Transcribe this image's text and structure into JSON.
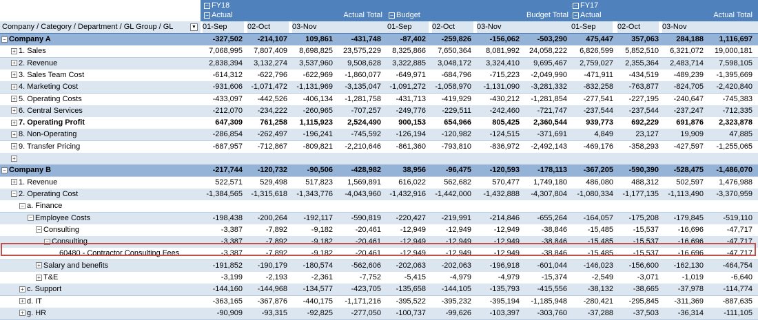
{
  "header": {
    "fy18": "FY18",
    "fy17": "FY17",
    "actual": "Actual",
    "budget": "Budget",
    "actual_total": "Actual Total",
    "budget_total": "Budget Total",
    "row_label": "Company / Category / Department / GL Group / GL",
    "dates": [
      "01-Sep",
      "02-Oct",
      "03-Nov"
    ]
  },
  "rows": [
    {
      "label": "Company A",
      "style": "company",
      "indent": 0,
      "toggle": "-",
      "values": [
        "-327,502",
        "-214,107",
        "109,861",
        "-431,748",
        "-87,402",
        "-259,826",
        "-156,062",
        "-503,290",
        "475,447",
        "357,063",
        "284,188",
        "1,116,697"
      ]
    },
    {
      "label": "1. Sales",
      "style": "plain",
      "indent": 1,
      "toggle": "+",
      "values": [
        "7,068,995",
        "7,807,409",
        "8,698,825",
        "23,575,229",
        "8,325,866",
        "7,650,364",
        "8,081,992",
        "24,058,222",
        "6,826,599",
        "5,852,510",
        "6,321,072",
        "19,000,181"
      ]
    },
    {
      "label": "2. Revenue",
      "style": "alt",
      "indent": 1,
      "toggle": "+",
      "values": [
        "2,838,394",
        "3,132,274",
        "3,537,960",
        "9,508,628",
        "3,322,885",
        "3,048,172",
        "3,324,410",
        "9,695,467",
        "2,759,027",
        "2,355,364",
        "2,483,714",
        "7,598,105"
      ]
    },
    {
      "label": "3. Sales Team Cost",
      "style": "plain",
      "indent": 1,
      "toggle": "+",
      "values": [
        "-614,312",
        "-622,796",
        "-622,969",
        "-1,860,077",
        "-649,971",
        "-684,796",
        "-715,223",
        "-2,049,990",
        "-471,911",
        "-434,519",
        "-489,239",
        "-1,395,669"
      ]
    },
    {
      "label": "4. Marketing Cost",
      "style": "alt",
      "indent": 1,
      "toggle": "+",
      "values": [
        "-931,606",
        "-1,071,472",
        "-1,131,969",
        "-3,135,047",
        "-1,091,272",
        "-1,058,970",
        "-1,131,090",
        "-3,281,332",
        "-832,258",
        "-763,877",
        "-824,705",
        "-2,420,840"
      ]
    },
    {
      "label": "5. Operating Costs",
      "style": "plain",
      "indent": 1,
      "toggle": "+",
      "values": [
        "-433,097",
        "-442,526",
        "-406,134",
        "-1,281,758",
        "-431,713",
        "-419,929",
        "-430,212",
        "-1,281,854",
        "-277,541",
        "-227,195",
        "-240,647",
        "-745,383"
      ]
    },
    {
      "label": "6. Central Services",
      "style": "alt",
      "indent": 1,
      "toggle": "+",
      "values": [
        "-212,070",
        "-234,222",
        "-260,965",
        "-707,257",
        "-249,776",
        "-229,511",
        "-242,460",
        "-721,747",
        "-237,544",
        "-237,544",
        "-237,247",
        "-712,335"
      ]
    },
    {
      "label": "7. Operating Profit",
      "style": "plain bold",
      "indent": 1,
      "toggle": "+",
      "values": [
        "647,309",
        "761,258",
        "1,115,923",
        "2,524,490",
        "900,153",
        "654,966",
        "805,425",
        "2,360,544",
        "939,773",
        "692,229",
        "691,876",
        "2,323,878"
      ]
    },
    {
      "label": "8. Non-Operating",
      "style": "alt",
      "indent": 1,
      "toggle": "+",
      "values": [
        "-286,854",
        "-262,497",
        "-196,241",
        "-745,592",
        "-126,194",
        "-120,982",
        "-124,515",
        "-371,691",
        "4,849",
        "23,127",
        "19,909",
        "47,885"
      ]
    },
    {
      "label": "9. Transfer Pricing",
      "style": "plain",
      "indent": 1,
      "toggle": "+",
      "values": [
        "-687,957",
        "-712,867",
        "-809,821",
        "-2,210,646",
        "-861,360",
        "-793,810",
        "-836,972",
        "-2,492,143",
        "-469,176",
        "-358,293",
        "-427,597",
        "-1,255,065"
      ]
    },
    {
      "label": "",
      "style": "alt",
      "indent": 1,
      "toggle": "+",
      "values": [
        "",
        "",
        "",
        "",
        "",
        "",
        "",
        "",
        "",
        "",
        "",
        ""
      ]
    },
    {
      "label": "Company B",
      "style": "company",
      "indent": 0,
      "toggle": "-",
      "values": [
        "-217,744",
        "-120,732",
        "-90,506",
        "-428,982",
        "38,956",
        "-96,475",
        "-120,593",
        "-178,113",
        "-367,205",
        "-590,390",
        "-528,475",
        "-1,486,070"
      ]
    },
    {
      "label": "1. Revenue",
      "style": "plain",
      "indent": 1,
      "toggle": "+",
      "values": [
        "522,571",
        "529,498",
        "517,823",
        "1,569,891",
        "616,022",
        "562,682",
        "570,477",
        "1,749,180",
        "486,080",
        "488,312",
        "502,597",
        "1,476,988"
      ]
    },
    {
      "label": "2. Operating Cost",
      "style": "alt",
      "indent": 1,
      "toggle": "-",
      "values": [
        "-1,384,565",
        "-1,315,618",
        "-1,343,776",
        "-4,043,960",
        "-1,432,916",
        "-1,442,000",
        "-1,432,888",
        "-4,307,804",
        "-1,080,334",
        "-1,177,135",
        "-1,113,490",
        "-3,370,959"
      ]
    },
    {
      "label": "a. Finance",
      "style": "plain",
      "indent": 2,
      "toggle": "-",
      "values": [
        "",
        "",
        "",
        "",
        "",
        "",
        "",
        "",
        "",
        "",
        "",
        ""
      ]
    },
    {
      "label": "Employee Costs",
      "style": "alt",
      "indent": 3,
      "toggle": "-",
      "values": [
        "-198,438",
        "-200,264",
        "-192,117",
        "-590,819",
        "-220,427",
        "-219,991",
        "-214,846",
        "-655,264",
        "-164,057",
        "-175,208",
        "-179,845",
        "-519,110"
      ]
    },
    {
      "label": "Consulting",
      "style": "plain",
      "indent": 4,
      "toggle": "-",
      "values": [
        "-3,387",
        "-7,892",
        "-9,182",
        "-20,461",
        "-12,949",
        "-12,949",
        "-12,949",
        "-38,846",
        "-15,485",
        "-15,537",
        "-16,696",
        "-47,717"
      ]
    },
    {
      "label": "Consulting",
      "style": "alt",
      "indent": 5,
      "toggle": "-",
      "values": [
        "-3,387",
        "-7,892",
        "-9,182",
        "-20,461",
        "-12,949",
        "-12,949",
        "-12,949",
        "-38,846",
        "-15,485",
        "-15,537",
        "-16,696",
        "-47,717"
      ]
    },
    {
      "label": "60480 - Contractor Consulting Fees",
      "style": "plain",
      "indent": 6,
      "toggle": "",
      "values": [
        "-3,387",
        "-7,892",
        "-9,182",
        "-20,461",
        "-12,949",
        "-12,949",
        "-12,949",
        "-38,846",
        "-15,485",
        "-15,537",
        "-16,696",
        "-47,717"
      ]
    },
    {
      "label": "Salary and benefits",
      "style": "alt",
      "indent": 4,
      "toggle": "+",
      "values": [
        "-191,852",
        "-190,179",
        "-180,574",
        "-562,606",
        "-202,063",
        "-202,063",
        "-196,918",
        "-601,044",
        "-146,023",
        "-156,600",
        "-162,130",
        "-464,754"
      ]
    },
    {
      "label": "T&E",
      "style": "plain",
      "indent": 4,
      "toggle": "+",
      "values": [
        "-3,199",
        "-2,193",
        "-2,361",
        "-7,752",
        "-5,415",
        "-4,979",
        "-4,979",
        "-15,374",
        "-2,549",
        "-3,071",
        "-1,019",
        "-6,640"
      ]
    },
    {
      "label": "c. Support",
      "style": "alt",
      "indent": 2,
      "toggle": "+",
      "values": [
        "-144,160",
        "-144,968",
        "-134,577",
        "-423,705",
        "-135,658",
        "-144,105",
        "-135,793",
        "-415,556",
        "-38,132",
        "-38,665",
        "-37,978",
        "-114,774"
      ]
    },
    {
      "label": "d. IT",
      "style": "plain",
      "indent": 2,
      "toggle": "+",
      "values": [
        "-363,165",
        "-367,876",
        "-440,175",
        "-1,171,216",
        "-395,522",
        "-395,232",
        "-395,194",
        "-1,185,948",
        "-280,421",
        "-295,845",
        "-311,369",
        "-887,635"
      ]
    },
    {
      "label": "g. HR",
      "style": "alt",
      "indent": 2,
      "toggle": "+",
      "values": [
        "-90,909",
        "-93,315",
        "-92,825",
        "-277,050",
        "-100,737",
        "-99,626",
        "-103,397",
        "-303,760",
        "-37,288",
        "-37,503",
        "-36,314",
        "-111,105"
      ]
    }
  ]
}
